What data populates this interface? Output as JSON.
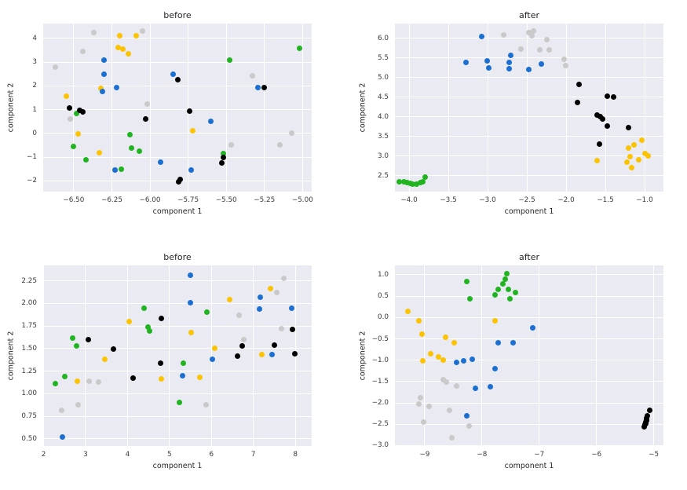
{
  "figure": {
    "background": "#ffffff",
    "plot_background": "#eaeaf2",
    "grid_color": "#ffffff"
  },
  "palette": {
    "gray": "#c9c9c9",
    "yellow": "#fcc303",
    "blue": "#1b6fd1",
    "green": "#21b421",
    "black": "#000000"
  },
  "chart_data": [
    {
      "type": "scatter",
      "title": "before",
      "xlabel": "component 1",
      "ylabel": "component 2",
      "xlim": [
        -6.7,
        -4.94
      ],
      "ylim": [
        -2.45,
        4.62
      ],
      "grid": true,
      "xtick_vals": [
        -6.5,
        -6.25,
        -6.0,
        -5.75,
        -5.5,
        -5.25,
        -5.0
      ],
      "xtick_labels": [
        "−6.50",
        "−6.25",
        "−6.00",
        "−5.75",
        "−5.50",
        "−5.25",
        "−5.00"
      ],
      "ytick_vals": [
        -2,
        -1,
        0,
        1,
        2,
        3,
        4
      ],
      "ytick_labels": [
        "−2",
        "−1",
        "0",
        "1",
        "2",
        "3",
        "4"
      ],
      "series": [
        {
          "name": "gray",
          "color_key": "gray",
          "points": [
            [
              -6.37,
              4.25
            ],
            [
              -6.05,
              4.3
            ],
            [
              -6.44,
              3.45
            ],
            [
              -6.62,
              2.8
            ],
            [
              -5.33,
              2.42
            ],
            [
              -6.02,
              1.22
            ],
            [
              -6.52,
              0.62
            ],
            [
              -5.47,
              -0.48
            ],
            [
              -5.15,
              -0.5
            ],
            [
              -5.07,
              0.0
            ]
          ]
        },
        {
          "name": "yellow",
          "color_key": "yellow",
          "points": [
            [
              -6.2,
              4.1
            ],
            [
              -6.09,
              4.12
            ],
            [
              -6.21,
              3.6
            ],
            [
              -6.18,
              3.56
            ],
            [
              -6.14,
              3.35
            ],
            [
              -6.32,
              1.88
            ],
            [
              -6.55,
              1.55
            ],
            [
              -6.47,
              -0.03
            ],
            [
              -6.33,
              -0.8
            ],
            [
              -5.72,
              0.1
            ]
          ]
        },
        {
          "name": "blue",
          "color_key": "blue",
          "points": [
            [
              -6.3,
              3.07
            ],
            [
              -6.3,
              2.48
            ],
            [
              -6.22,
              1.93
            ],
            [
              -6.31,
              1.76
            ],
            [
              -5.85,
              2.5
            ],
            [
              -5.6,
              0.5
            ],
            [
              -5.93,
              -1.22
            ],
            [
              -6.23,
              -1.55
            ],
            [
              -5.73,
              -1.55
            ],
            [
              -5.29,
              1.93
            ]
          ]
        },
        {
          "name": "green",
          "color_key": "green",
          "points": [
            [
              -6.48,
              0.85
            ],
            [
              -6.5,
              -0.55
            ],
            [
              -6.42,
              -1.12
            ],
            [
              -6.13,
              -0.05
            ],
            [
              -6.12,
              -0.63
            ],
            [
              -6.07,
              -0.75
            ],
            [
              -6.19,
              -1.5
            ],
            [
              -5.52,
              -0.85
            ],
            [
              -5.48,
              3.1
            ],
            [
              -5.02,
              3.58
            ]
          ]
        },
        {
          "name": "black",
          "color_key": "black",
          "points": [
            [
              -6.53,
              1.08
            ],
            [
              -6.46,
              0.97
            ],
            [
              -6.44,
              0.9
            ],
            [
              -6.03,
              0.6
            ],
            [
              -5.82,
              2.27
            ],
            [
              -5.74,
              0.95
            ],
            [
              -5.25,
              1.93
            ],
            [
              -5.52,
              -1.0
            ],
            [
              -5.53,
              -1.25
            ],
            [
              -5.8,
              -1.95
            ],
            [
              -5.81,
              -2.05
            ]
          ]
        }
      ]
    },
    {
      "type": "scatter",
      "title": "after",
      "xlabel": "component 1",
      "ylabel": "component 2",
      "xlim": [
        -4.18,
        -0.76
      ],
      "ylim": [
        2.09,
        6.38
      ],
      "grid": true,
      "xtick_vals": [
        -4.0,
        -3.5,
        -3.0,
        -2.5,
        -2.0,
        -1.5,
        -1.0
      ],
      "xtick_labels": [
        "−4.0",
        "−3.5",
        "−3.0",
        "−2.5",
        "−2.0",
        "−1.5",
        "−1.0"
      ],
      "ytick_vals": [
        2.5,
        3.0,
        3.5,
        4.0,
        4.5,
        5.0,
        5.5,
        6.0
      ],
      "ytick_labels": [
        "2.5",
        "3.0",
        "3.5",
        "4.0",
        "4.5",
        "5.0",
        "5.5",
        "6.0"
      ],
      "series": [
        {
          "name": "gray",
          "color_key": "gray",
          "points": [
            [
              -2.8,
              6.08
            ],
            [
              -2.48,
              6.14
            ],
            [
              -2.42,
              6.19
            ],
            [
              -2.44,
              6.06
            ],
            [
              -2.25,
              5.97
            ],
            [
              -2.58,
              5.72
            ],
            [
              -2.34,
              5.7
            ],
            [
              -2.22,
              5.7
            ],
            [
              -2.03,
              5.47
            ],
            [
              -2.01,
              5.3
            ]
          ]
        },
        {
          "name": "blue",
          "color_key": "blue",
          "points": [
            [
              -3.08,
              6.05
            ],
            [
              -3.28,
              5.39
            ],
            [
              -3.01,
              5.42
            ],
            [
              -2.99,
              5.25
            ],
            [
              -2.71,
              5.57
            ],
            [
              -2.73,
              5.38
            ],
            [
              -2.73,
              5.22
            ],
            [
              -2.48,
              5.21
            ],
            [
              -2.32,
              5.34
            ]
          ]
        },
        {
          "name": "black",
          "color_key": "black",
          "points": [
            [
              -1.84,
              4.82
            ],
            [
              -1.86,
              4.36
            ],
            [
              -1.48,
              4.52
            ],
            [
              -1.4,
              4.51
            ],
            [
              -1.61,
              4.05
            ],
            [
              -1.57,
              4.0
            ],
            [
              -1.54,
              3.95
            ],
            [
              -1.48,
              3.76
            ],
            [
              -1.21,
              3.72
            ],
            [
              -1.58,
              3.3
            ]
          ]
        },
        {
          "name": "yellow",
          "color_key": "yellow",
          "points": [
            [
              -1.61,
              2.89
            ],
            [
              -1.21,
              3.21
            ],
            [
              -1.14,
              3.29
            ],
            [
              -1.04,
              3.4
            ],
            [
              -1.19,
              2.99
            ],
            [
              -1.23,
              2.85
            ],
            [
              -1.17,
              2.71
            ],
            [
              -1.08,
              2.91
            ],
            [
              -1.0,
              3.06
            ],
            [
              -0.96,
              3.0
            ]
          ]
        },
        {
          "name": "green",
          "color_key": "green",
          "points": [
            [
              -4.13,
              2.35
            ],
            [
              -4.07,
              2.35
            ],
            [
              -4.03,
              2.33
            ],
            [
              -3.99,
              2.3
            ],
            [
              -3.96,
              2.28
            ],
            [
              -3.91,
              2.28
            ],
            [
              -3.86,
              2.32
            ],
            [
              -3.83,
              2.34
            ],
            [
              -3.8,
              2.47
            ]
          ]
        }
      ]
    },
    {
      "type": "scatter",
      "title": "before",
      "xlabel": "component 1",
      "ylabel": "component 2",
      "xlim": [
        1.99,
        8.39
      ],
      "ylim": [
        0.42,
        2.42
      ],
      "grid": true,
      "xtick_vals": [
        2,
        3,
        4,
        5,
        6,
        7,
        8
      ],
      "xtick_labels": [
        "2",
        "3",
        "4",
        "5",
        "6",
        "7",
        "8"
      ],
      "ytick_vals": [
        0.5,
        0.75,
        1.0,
        1.25,
        1.5,
        1.75,
        2.0,
        2.25
      ],
      "ytick_labels": [
        "0.50",
        "0.75",
        "1.00",
        "1.25",
        "1.50",
        "1.75",
        "2.00",
        "2.25"
      ],
      "series": [
        {
          "name": "gray",
          "color_key": "gray",
          "points": [
            [
              2.43,
              0.82
            ],
            [
              2.82,
              0.88
            ],
            [
              3.08,
              1.14
            ],
            [
              3.31,
              1.13
            ],
            [
              5.88,
              0.88
            ],
            [
              6.65,
              1.87
            ],
            [
              6.78,
              1.6
            ],
            [
              7.56,
              2.12
            ],
            [
              7.67,
              1.72
            ],
            [
              7.72,
              2.28
            ]
          ]
        },
        {
          "name": "blue",
          "color_key": "blue",
          "points": [
            [
              2.45,
              0.52
            ],
            [
              5.49,
              2.31
            ],
            [
              5.49,
              2.01
            ],
            [
              5.31,
              1.2
            ],
            [
              6.02,
              1.38
            ],
            [
              7.16,
              2.07
            ],
            [
              7.15,
              1.94
            ],
            [
              7.44,
              1.43
            ],
            [
              7.92,
              1.95
            ]
          ]
        },
        {
          "name": "green",
          "color_key": "green",
          "points": [
            [
              2.28,
              1.11
            ],
            [
              2.51,
              1.19
            ],
            [
              2.7,
              1.62
            ],
            [
              2.79,
              1.53
            ],
            [
              4.39,
              1.95
            ],
            [
              4.49,
              1.74
            ],
            [
              4.52,
              1.69
            ],
            [
              5.33,
              1.34
            ],
            [
              5.24,
              0.9
            ],
            [
              5.89,
              1.9
            ]
          ]
        },
        {
          "name": "yellow",
          "color_key": "yellow",
          "points": [
            [
              2.8,
              1.14
            ],
            [
              3.46,
              1.38
            ],
            [
              4.04,
              1.8
            ],
            [
              4.8,
              1.16
            ],
            [
              5.51,
              1.68
            ],
            [
              5.73,
              1.18
            ],
            [
              6.07,
              1.5
            ],
            [
              6.43,
              2.04
            ],
            [
              7.21,
              1.43
            ],
            [
              7.41,
              2.16
            ]
          ]
        },
        {
          "name": "black",
          "color_key": "black",
          "points": [
            [
              3.06,
              1.6
            ],
            [
              3.67,
              1.49
            ],
            [
              4.13,
              1.17
            ],
            [
              4.81,
              1.83
            ],
            [
              4.78,
              1.34
            ],
            [
              6.63,
              1.42
            ],
            [
              6.74,
              1.53
            ],
            [
              7.5,
              1.54
            ],
            [
              7.94,
              1.71
            ],
            [
              7.98,
              1.44
            ]
          ]
        }
      ]
    },
    {
      "type": "scatter",
      "title": "after",
      "xlabel": "component 1",
      "ylabel": "component 2",
      "xlim": [
        -9.52,
        -4.83
      ],
      "ylim": [
        -3.01,
        1.22
      ],
      "grid": true,
      "xtick_vals": [
        -9,
        -8,
        -7,
        -6,
        -5
      ],
      "xtick_labels": [
        "−9",
        "−8",
        "−7",
        "−6",
        "−5"
      ],
      "ytick_vals": [
        -3.0,
        -2.5,
        -2.0,
        -1.5,
        -1.0,
        -0.5,
        0.0,
        0.5,
        1.0
      ],
      "ytick_labels": [
        "−3.0",
        "−2.5",
        "−2.0",
        "−1.5",
        "−1.0",
        "−0.5",
        "0.0",
        "0.5",
        "1.0"
      ],
      "series": [
        {
          "name": "gray",
          "color_key": "gray",
          "points": [
            [
              -8.68,
              -1.45
            ],
            [
              -8.62,
              -1.51
            ],
            [
              -8.45,
              -1.6
            ],
            [
              -9.07,
              -1.88
            ],
            [
              -9.1,
              -2.03
            ],
            [
              -8.92,
              -2.09
            ],
            [
              -8.57,
              -2.18
            ],
            [
              -9.02,
              -2.45
            ],
            [
              -8.22,
              -2.55
            ],
            [
              -8.52,
              -2.82
            ]
          ]
        },
        {
          "name": "yellow",
          "color_key": "yellow",
          "points": [
            [
              -9.3,
              0.14
            ],
            [
              -9.1,
              -0.07
            ],
            [
              -9.05,
              -0.39
            ],
            [
              -8.64,
              -0.46
            ],
            [
              -8.49,
              -0.59
            ],
            [
              -8.89,
              -0.84
            ],
            [
              -9.04,
              -1.02
            ],
            [
              -8.76,
              -0.93
            ],
            [
              -8.68,
              -0.99
            ],
            [
              -7.77,
              -0.08
            ]
          ]
        },
        {
          "name": "green",
          "color_key": "green",
          "points": [
            [
              -8.27,
              0.84
            ],
            [
              -8.21,
              0.44
            ],
            [
              -7.77,
              0.53
            ],
            [
              -7.71,
              0.66
            ],
            [
              -7.64,
              0.79
            ],
            [
              -7.57,
              1.03
            ],
            [
              -7.6,
              0.89
            ],
            [
              -7.54,
              0.66
            ],
            [
              -7.51,
              0.44
            ],
            [
              -7.42,
              0.58
            ]
          ]
        },
        {
          "name": "blue",
          "color_key": "blue",
          "points": [
            [
              -8.45,
              -1.05
            ],
            [
              -8.32,
              -1.02
            ],
            [
              -8.17,
              -0.98
            ],
            [
              -7.72,
              -0.6
            ],
            [
              -7.45,
              -0.6
            ],
            [
              -7.12,
              -0.25
            ],
            [
              -7.77,
              -1.19
            ],
            [
              -8.12,
              -1.66
            ],
            [
              -7.86,
              -1.62
            ],
            [
              -8.27,
              -2.3
            ]
          ]
        },
        {
          "name": "black",
          "color_key": "black",
          "points": [
            [
              -5.07,
              -2.18
            ],
            [
              -5.11,
              -2.3
            ],
            [
              -5.12,
              -2.35
            ],
            [
              -5.13,
              -2.4
            ],
            [
              -5.14,
              -2.45
            ],
            [
              -5.15,
              -2.5
            ],
            [
              -5.16,
              -2.56
            ],
            [
              -5.12,
              -2.42
            ],
            [
              -5.14,
              -2.48
            ],
            [
              -5.13,
              -2.37
            ]
          ]
        }
      ]
    }
  ]
}
